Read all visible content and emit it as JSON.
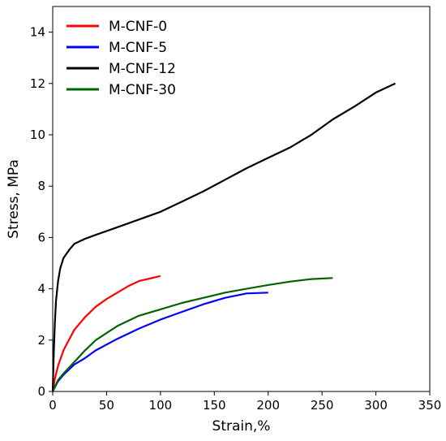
{
  "chart_data": {
    "type": "line",
    "xlabel": "Strain,%",
    "ylabel": "Stress, MPa",
    "xlim": [
      0,
      350
    ],
    "ylim": [
      0,
      15
    ],
    "xticks": [
      0,
      50,
      100,
      150,
      200,
      250,
      300,
      350
    ],
    "yticks": [
      0,
      2,
      4,
      6,
      8,
      10,
      12,
      14
    ],
    "grid": false,
    "legend_position": "top-left",
    "series": [
      {
        "name": "M-CNF-0",
        "color": "#ff0000",
        "x": [
          0,
          2,
          5,
          10,
          15,
          20,
          30,
          40,
          50,
          60,
          70,
          80,
          90,
          100
        ],
        "y": [
          0,
          0.5,
          1.0,
          1.6,
          2.0,
          2.4,
          2.9,
          3.3,
          3.6,
          3.85,
          4.1,
          4.3,
          4.4,
          4.5
        ]
      },
      {
        "name": "M-CNF-5",
        "color": "#0000ff",
        "x": [
          0,
          5,
          10,
          20,
          30,
          40,
          60,
          80,
          100,
          120,
          140,
          160,
          180,
          200
        ],
        "y": [
          0,
          0.4,
          0.65,
          1.05,
          1.3,
          1.6,
          2.05,
          2.45,
          2.8,
          3.1,
          3.4,
          3.65,
          3.82,
          3.85
        ]
      },
      {
        "name": "M-CNF-12",
        "color": "#000000",
        "x": [
          0,
          1,
          2,
          3,
          5,
          7,
          10,
          15,
          20,
          30,
          40,
          60,
          80,
          100,
          120,
          140,
          160,
          180,
          200,
          220,
          240,
          260,
          280,
          300,
          318
        ],
        "y": [
          0,
          1.5,
          2.7,
          3.5,
          4.3,
          4.8,
          5.2,
          5.5,
          5.75,
          5.95,
          6.1,
          6.4,
          6.7,
          7.0,
          7.4,
          7.8,
          8.25,
          8.7,
          9.1,
          9.5,
          10.0,
          10.6,
          11.1,
          11.65,
          12.0
        ]
      },
      {
        "name": "M-CNF-30",
        "color": "#006400",
        "x": [
          0,
          5,
          10,
          20,
          30,
          40,
          60,
          80,
          100,
          120,
          140,
          160,
          180,
          200,
          220,
          240,
          260
        ],
        "y": [
          0,
          0.45,
          0.7,
          1.15,
          1.6,
          2.0,
          2.55,
          2.95,
          3.2,
          3.45,
          3.65,
          3.85,
          4.0,
          4.15,
          4.28,
          4.38,
          4.42
        ]
      }
    ]
  }
}
